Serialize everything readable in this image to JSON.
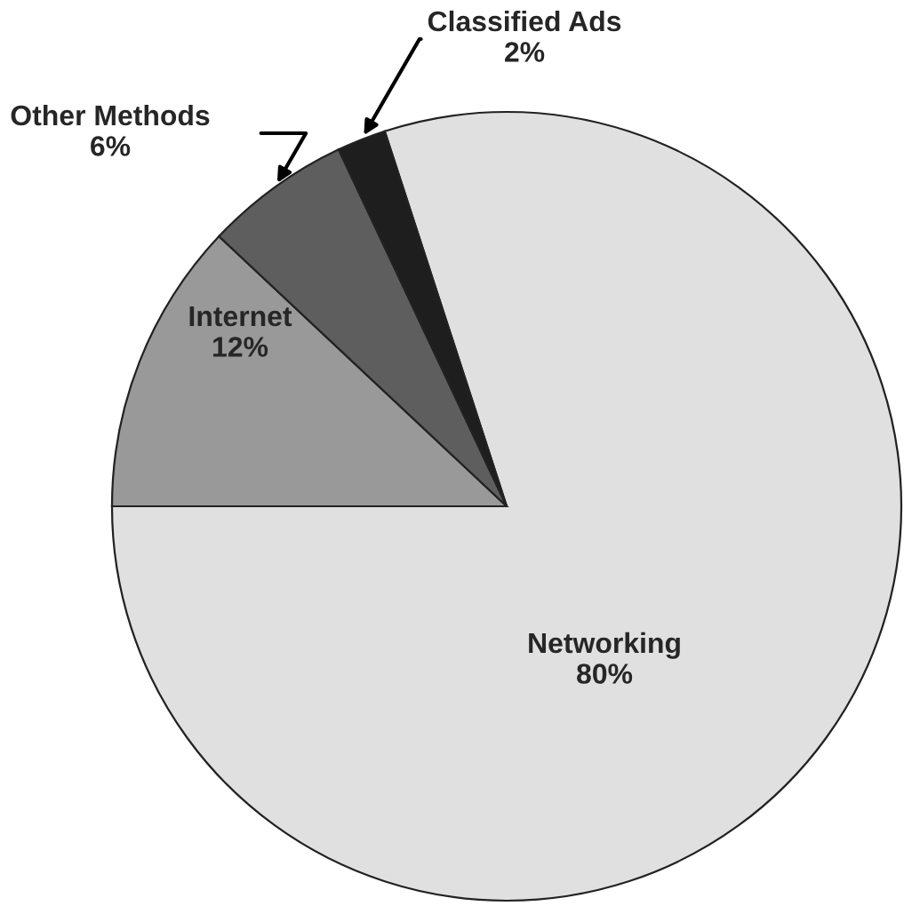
{
  "chart_data": {
    "type": "pie",
    "categories": [
      "Networking",
      "Internet",
      "Other Methods",
      "Classified Ads"
    ],
    "values": [
      80,
      12,
      6,
      2
    ],
    "value_labels": [
      "80%",
      "12%",
      "6%",
      "2%"
    ],
    "colors": [
      "#e0e0e0",
      "#999999",
      "#5e5e5e",
      "#1e1e1e"
    ]
  }
}
